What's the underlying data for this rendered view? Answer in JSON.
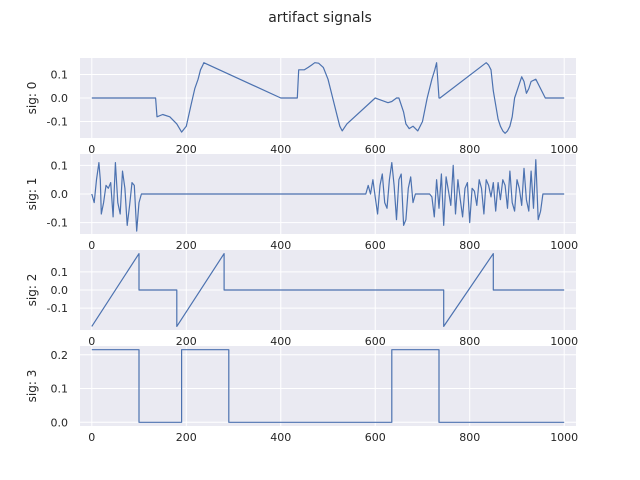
{
  "chart_data": {
    "type": "line",
    "title": "artifact signals",
    "line_color": "#4c72b0",
    "background_color": "#eaeaf2",
    "grid_color": "#ffffff",
    "grid": true,
    "xlim": [
      -25,
      1025
    ],
    "xticks": [
      0,
      200,
      400,
      600,
      800,
      1000
    ],
    "panels": [
      {
        "ylabel": "sig: 0",
        "ylim": [
          -0.17,
          0.17
        ],
        "yticks": [
          -0.1,
          0.0,
          0.1
        ],
        "ytick_labels": [
          "-0.1",
          "0.0",
          "0.1"
        ],
        "x": [
          0,
          135,
          138,
          150,
          165,
          180,
          190,
          200,
          210,
          218,
          225,
          230,
          235,
          237,
          400,
          435,
          438,
          450,
          458,
          465,
          472,
          480,
          490,
          500,
          510,
          520,
          525,
          530,
          540,
          600,
          627,
          635,
          645,
          650,
          660,
          665,
          672,
          680,
          690,
          700,
          710,
          720,
          726,
          730,
          735,
          737,
          835,
          840,
          845,
          850,
          860,
          865,
          870,
          875,
          880,
          885,
          890,
          895,
          905,
          910,
          915,
          920,
          925,
          930,
          940,
          960,
          1000
        ],
        "y": [
          0,
          0,
          -0.08,
          -0.07,
          -0.08,
          -0.11,
          -0.145,
          -0.12,
          -0.03,
          0.04,
          0.08,
          0.12,
          0.14,
          0.15,
          0,
          0,
          0.12,
          0.12,
          0.13,
          0.14,
          0.15,
          0.148,
          0.13,
          0.08,
          0.0,
          -0.08,
          -0.12,
          -0.14,
          -0.11,
          0,
          -0.02,
          -0.015,
          0.0,
          0.0,
          -0.06,
          -0.11,
          -0.13,
          -0.12,
          -0.14,
          -0.1,
          0.0,
          0.08,
          0.12,
          0.15,
          0.0,
          0,
          0.15,
          0.14,
          0.12,
          0.03,
          -0.09,
          -0.12,
          -0.14,
          -0.15,
          -0.14,
          -0.12,
          -0.08,
          0.0,
          0.06,
          0.09,
          0.07,
          0.02,
          0.04,
          0.07,
          0.08,
          0,
          0
        ]
      },
      {
        "ylabel": "sig: 1",
        "ylim": [
          -0.14,
          0.14
        ],
        "yticks": [
          -0.1,
          0.0,
          0.1
        ],
        "ytick_labels": [
          "-0.1",
          "0.0",
          "0.1"
        ],
        "x": [
          0,
          5,
          10,
          15,
          18,
          20,
          25,
          30,
          35,
          40,
          45,
          50,
          55,
          60,
          65,
          70,
          75,
          80,
          85,
          90,
          95,
          100,
          105,
          580,
          585,
          590,
          595,
          600,
          605,
          610,
          615,
          620,
          625,
          630,
          635,
          640,
          645,
          650,
          655,
          660,
          665,
          670,
          675,
          680,
          685,
          690,
          695,
          700,
          705,
          710,
          715,
          720,
          725,
          730,
          735,
          740,
          745,
          750,
          755,
          760,
          765,
          770,
          775,
          780,
          785,
          790,
          795,
          800,
          805,
          810,
          815,
          820,
          825,
          830,
          835,
          840,
          845,
          850,
          855,
          860,
          865,
          870,
          875,
          880,
          885,
          890,
          895,
          900,
          905,
          910,
          915,
          920,
          925,
          930,
          935,
          940,
          945,
          950,
          955,
          960,
          1000
        ],
        "y": [
          0,
          -0.03,
          0.05,
          0.11,
          0.05,
          -0.07,
          -0.03,
          0.03,
          0.02,
          0.04,
          -0.08,
          0.11,
          -0.03,
          -0.07,
          0.08,
          0.02,
          -0.11,
          -0.04,
          0.04,
          0.03,
          -0.13,
          -0.03,
          0,
          0,
          0.03,
          0.0,
          0.05,
          -0.01,
          -0.07,
          0.03,
          0.07,
          -0.03,
          -0.05,
          0.05,
          0.11,
          0.03,
          -0.09,
          0.05,
          0.07,
          -0.11,
          -0.09,
          0.02,
          0.06,
          -0.03,
          0,
          0,
          0,
          0,
          0,
          0,
          0,
          -0.01,
          -0.08,
          0.05,
          -0.05,
          0.07,
          -0.11,
          0.06,
          0.01,
          -0.04,
          0.1,
          -0.07,
          0.05,
          -0.02,
          -0.08,
          0.02,
          0.04,
          -0.1,
          0.02,
          0.01,
          -0.04,
          0.05,
          0.02,
          -0.07,
          0.05,
          0.03,
          -0.01,
          0.04,
          -0.06,
          0.04,
          -0.02,
          0.05,
          0.03,
          -0.05,
          0.08,
          -0.03,
          -0.06,
          0.05,
          0.02,
          -0.04,
          0.09,
          -0.02,
          -0.06,
          0.08,
          -0.05,
          0.12,
          -0.09,
          -0.06,
          0,
          0,
          0
        ]
      },
      {
        "ylabel": "sig: 2",
        "ylim": [
          -0.22,
          0.22
        ],
        "yticks": [
          -0.1,
          0.0,
          0.1
        ],
        "ytick_labels": [
          "-0.1",
          "0.0",
          "0.1"
        ],
        "x": [
          0,
          100,
          100,
          180,
          180,
          280,
          280,
          745,
          745,
          850,
          850,
          1000
        ],
        "y": [
          -0.2,
          0.2,
          0,
          0,
          -0.2,
          0.2,
          0,
          0,
          -0.2,
          0.2,
          0,
          0
        ]
      },
      {
        "ylabel": "sig: 3",
        "ylim": [
          -0.011,
          0.226
        ],
        "yticks": [
          0.0,
          0.1,
          0.2
        ],
        "ytick_labels": [
          "0.0",
          "0.1",
          "0.2"
        ],
        "x": [
          0,
          100,
          100,
          190,
          190,
          290,
          290,
          635,
          635,
          735,
          735,
          1000
        ],
        "y": [
          0.215,
          0.215,
          0,
          0,
          0.215,
          0.215,
          0,
          0,
          0.215,
          0.215,
          0,
          0
        ]
      }
    ]
  }
}
